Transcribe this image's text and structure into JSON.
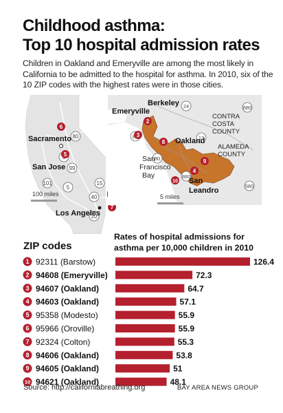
{
  "title": {
    "line1": "Childhood asthma:",
    "line2": "Top 10 hospital admission rates"
  },
  "intro": "Children in Oakland and Emeryville are among the most likely in California to be admitted to the hospital for asthma. In 2010, six of the 10 ZIP codes with the highest rates were in those cities.",
  "map": {
    "state_labels": {
      "sacramento": "Sacramento",
      "san_jose": "San Jose",
      "los_angeles": "Los Angeles",
      "scale": "100 miles"
    },
    "highway_labels": [
      "80",
      "5",
      "99",
      "101",
      "5",
      "15",
      "40",
      "10"
    ],
    "bay_labels": {
      "emeryville": "Emeryville",
      "berkeley": "Berkeley",
      "oakland": "Oakland",
      "contra_costa_1": "CONTRA",
      "contra_costa_2": "COSTA",
      "contra_costa_3": "COUNTY",
      "alameda_1": "ALAMEDA",
      "alameda_2": "COUNTY",
      "bay_1": "San",
      "bay_2": "Francisco",
      "bay_3": "Bay",
      "san_leandro_1": "San",
      "san_leandro_2": "Leandro",
      "scale": "5 miles"
    },
    "bay_highway_labels": [
      "80",
      "24",
      "680",
      "13",
      "80",
      "880",
      "580"
    ],
    "colors": {
      "highlight": "#c8752c",
      "land": "#e6e6e6",
      "water": "#ffffff",
      "marker": "#b5202e"
    }
  },
  "headers": {
    "zip": "ZIP codes",
    "rate_line1": "Rates of hospital admissions for",
    "rate_line2": "asthma per 10,000 children in 2010"
  },
  "chart_data": {
    "type": "bar",
    "orientation": "horizontal",
    "categories": [
      "92311 (Barstow)",
      "94608 (Emeryville)",
      "94607 (Oakland)",
      "94603 (Oakland)",
      "95358 (Modesto)",
      "95966 (Oroville)",
      "92324 (Colton)",
      "94606 (Oakland)",
      "94605 (Oakland)",
      "94621 (Oakland)"
    ],
    "ranks": [
      "1",
      "2",
      "3",
      "4",
      "5",
      "6",
      "7",
      "8",
      "9",
      "10"
    ],
    "values": [
      126.4,
      72.3,
      64.7,
      57.1,
      55.9,
      55.9,
      55.3,
      53.8,
      51,
      48.1
    ],
    "value_labels": [
      "126.4",
      "72.3",
      "64.7",
      "57.1",
      "55.9",
      "55.9",
      "55.3",
      "53.8",
      "51",
      "48.1"
    ],
    "bold_rows": [
      false,
      true,
      true,
      true,
      false,
      false,
      false,
      true,
      true,
      true
    ],
    "bar_color": "#b5202e",
    "marker_color": "#b5202e"
  },
  "footer": {
    "source": "Source: http://californiabreathing.org",
    "credit": "BAY AREA NEWS GROUP"
  }
}
